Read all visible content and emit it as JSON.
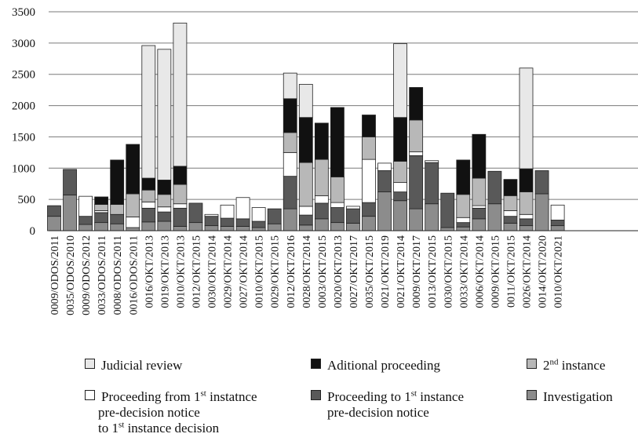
{
  "chart_data": {
    "type": "bar",
    "stacked": true,
    "ylim": [
      0,
      3500
    ],
    "yticks": [
      0,
      500,
      1000,
      1500,
      2000,
      2500,
      3000,
      3500
    ],
    "grid": true,
    "legend_position": "bottom",
    "categories": [
      "0009/ODOS/2011",
      "0035/ODOS/2010",
      "0009/ODOS/2012",
      "0033/ODOS/2011",
      "0008/ODOS/2011",
      "0016/ODOS/2011",
      "0016/OKT/2013",
      "0019/OKT/2013",
      "0010/OKT/2013",
      "0012/OKT/2015",
      "0030/OKT/2014",
      "0029/OKT/2014",
      "0027/OKT/2014",
      "0010/OKT/2015",
      "0029/OKT/2015",
      "0012/OKT/2016",
      "0028/OKT/2014",
      "0003/OKT/2015",
      "0020/OKT/2013",
      "0027/OKT/2017",
      "0035/OKT/2015",
      "0021/OKT/2019",
      "0021/OKT/2014",
      "0009/OKT/2017",
      "0013/OKT/2015",
      "0030/OKT/2015",
      "0033/OKT/2014",
      "0006/OKT/2014",
      "0009/OKT/2015",
      "0011/OKT/2015",
      "0026/OKT/2014",
      "0014/OKT/2020",
      "0010/OKT/2021"
    ],
    "series": [
      {
        "key": "investigation",
        "color": "#8c8c8c",
        "values": [
          230,
          570,
          100,
          130,
          110,
          50,
          140,
          150,
          70,
          130,
          80,
          70,
          70,
          50,
          110,
          350,
          90,
          190,
          130,
          120,
          230,
          620,
          480,
          350,
          430,
          50,
          60,
          190,
          430,
          120,
          80,
          590,
          80
        ]
      },
      {
        "key": "proceeding_to_1st",
        "color": "#595959",
        "values": [
          170,
          410,
          130,
          160,
          150,
          0,
          220,
          150,
          290,
          310,
          150,
          130,
          120,
          100,
          240,
          520,
          160,
          250,
          240,
          230,
          220,
          340,
          140,
          850,
          660,
          550,
          70,
          170,
          520,
          110,
          110,
          370,
          90
        ]
      },
      {
        "key": "proceeding_from_1st",
        "color": "#ffffff",
        "values": [
          0,
          0,
          320,
          30,
          0,
          170,
          100,
          80,
          70,
          0,
          30,
          210,
          340,
          220,
          0,
          380,
          140,
          120,
          80,
          40,
          690,
          120,
          150,
          60,
          30,
          0,
          80,
          40,
          0,
          90,
          70,
          0,
          240
        ]
      },
      {
        "key": "second_instance",
        "color": "#b8b8b8",
        "values": [
          0,
          0,
          0,
          100,
          160,
          370,
          190,
          200,
          310,
          0,
          0,
          0,
          0,
          0,
          0,
          320,
          700,
          580,
          410,
          0,
          360,
          0,
          340,
          510,
          0,
          0,
          370,
          440,
          0,
          240,
          360,
          0,
          0
        ]
      },
      {
        "key": "additional_proceeding",
        "color": "#111111",
        "values": [
          0,
          0,
          0,
          120,
          710,
          790,
          190,
          230,
          290,
          0,
          0,
          0,
          0,
          0,
          0,
          540,
          720,
          580,
          1110,
          0,
          350,
          0,
          700,
          520,
          0,
          0,
          550,
          700,
          0,
          260,
          370,
          0,
          0
        ]
      },
      {
        "key": "judicial_review",
        "color": "#e8e8e8",
        "values": [
          0,
          0,
          0,
          0,
          0,
          0,
          2120,
          2090,
          2290,
          0,
          0,
          0,
          0,
          0,
          0,
          410,
          530,
          0,
          0,
          0,
          0,
          0,
          1180,
          0,
          0,
          0,
          0,
          0,
          0,
          0,
          1610,
          0,
          0
        ]
      }
    ]
  },
  "legend": {
    "judicial_review": {
      "label": "Judicial review",
      "color": "#e8e8e8"
    },
    "additional_proceeding": {
      "label": "Aditional proceeding",
      "color": "#111111"
    },
    "second_instance": {
      "label_num": "2",
      "label_sup": "nd",
      "label_rest": " instance",
      "color": "#b8b8b8"
    },
    "proceeding_from_1st": {
      "line1_a": "Proceeding from 1",
      "line1_sup": "st",
      "line1_b": " instatnce",
      "line2": "pre-decision notice",
      "line3_a": "to 1",
      "line3_sup": "st",
      "line3_b": " instance decision",
      "color": "#ffffff"
    },
    "proceeding_to_1st": {
      "line1_a": "Proceeding to 1",
      "line1_sup": "st",
      "line1_b": " instance",
      "line2": "pre-decision notice",
      "color": "#595959"
    },
    "investigation": {
      "label": "Investigation",
      "color": "#8c8c8c"
    }
  }
}
